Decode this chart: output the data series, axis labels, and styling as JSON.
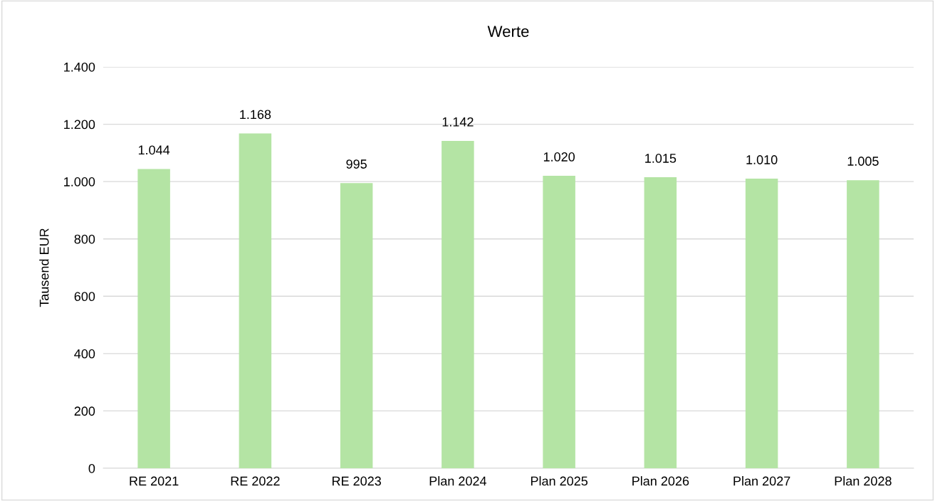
{
  "chart_data": {
    "type": "bar",
    "title": "Werte",
    "ylabel": "Tausend EUR",
    "categories": [
      "RE 2021",
      "RE 2022",
      "RE 2023",
      "Plan 2024",
      "Plan 2025",
      "Plan 2026",
      "Plan 2027",
      "Plan 2028"
    ],
    "values": [
      1044,
      1168,
      995,
      1142,
      1020,
      1015,
      1010,
      1005
    ],
    "value_labels": [
      "1.044",
      "1.168",
      "995",
      "1.142",
      "1.020",
      "1.015",
      "1.010",
      "1.005"
    ],
    "color": "#b4e4a4",
    "ylim": [
      0,
      1400
    ],
    "yticks": [
      0,
      200,
      400,
      600,
      800,
      {
        "value": 1000,
        "label": "1.000"
      },
      {
        "value": 1200,
        "label": "1.200"
      },
      {
        "value": 1400,
        "label": "1.400"
      }
    ],
    "grid": "y",
    "legend": false
  }
}
